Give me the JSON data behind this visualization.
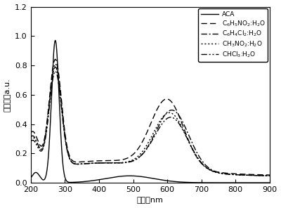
{
  "xlim": [
    200,
    900
  ],
  "ylim": [
    0,
    1.2
  ],
  "xlabel": "波长：nm",
  "ylabel": "吸光度：a.u.",
  "xticks": [
    200,
    300,
    400,
    500,
    600,
    700,
    800,
    900
  ],
  "yticks": [
    0.0,
    0.2,
    0.4,
    0.6,
    0.8,
    1.0,
    1.2
  ],
  "background_color": "#ffffff",
  "figsize": [
    4.0,
    2.96
  ],
  "dpi": 100,
  "legend_labels": [
    "ACA",
    "C$_6$H$_5$NO$_2$:H$_2$O",
    "C$_6$H$_4$Cl$_2$:H$_2$O",
    "CH$_3$NO$_2$:H$_2$O",
    "CHCl$_3$:H$_2$O"
  ]
}
